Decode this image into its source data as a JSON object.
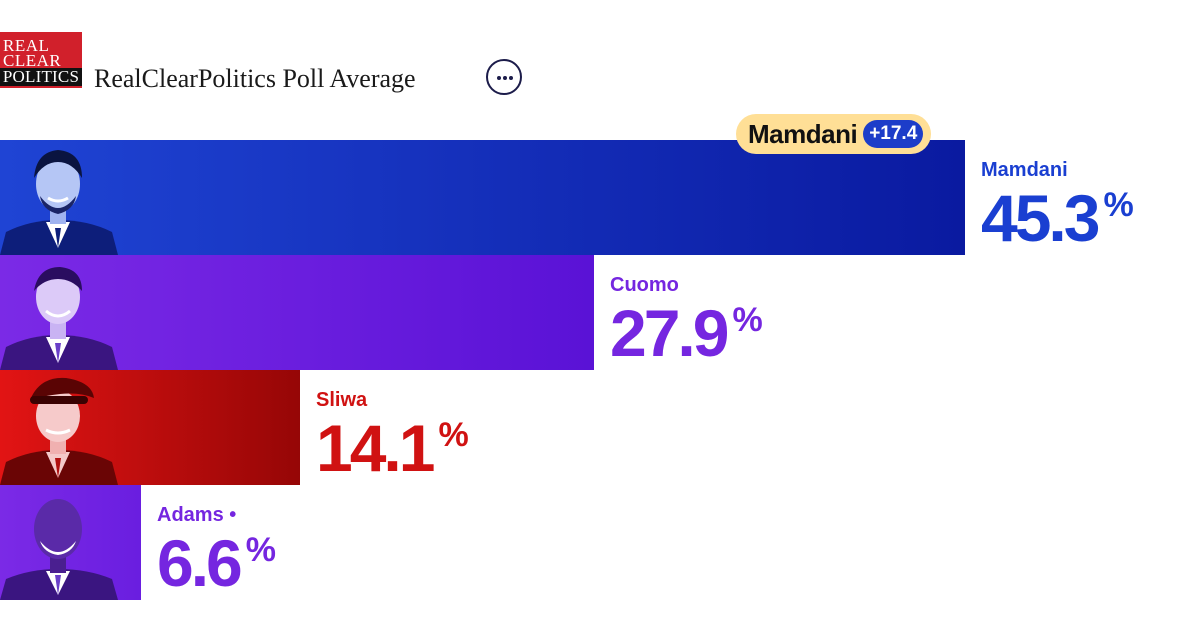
{
  "header": {
    "logo": {
      "line1": "REAL",
      "line2": "CLEAR",
      "line3": "POLITICS"
    },
    "title": "RealClearPolitics Poll Average",
    "more_icon": "ellipsis-icon"
  },
  "leader": {
    "name": "Mamdani",
    "margin": "+17.4"
  },
  "colors": {
    "mamdani": "#1a3fd1",
    "cuomo": "#7526e0",
    "sliwa": "#d01212",
    "adams": "#7526e0"
  },
  "chart_data": {
    "type": "bar",
    "orientation": "horizontal",
    "title": "RealClearPolitics Poll Average",
    "categories": [
      "Mamdani",
      "Cuomo",
      "Sliwa",
      "Adams •"
    ],
    "values": [
      45.3,
      27.9,
      14.1,
      6.6
    ],
    "value_labels": [
      "45.3",
      "27.9",
      "14.1",
      "6.6"
    ],
    "unit": "%",
    "legend": "none",
    "grid": false
  }
}
